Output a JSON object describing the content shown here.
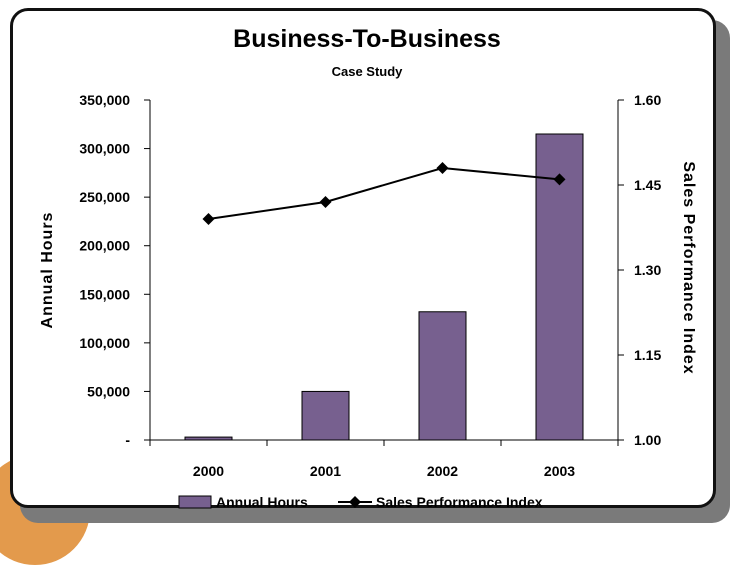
{
  "chart_data": {
    "type": "bar+line",
    "title": "Business-To-Business",
    "subtitle": "Case Study",
    "categories": [
      "2000",
      "2001",
      "2002",
      "2003"
    ],
    "series": [
      {
        "name": "Annual Hours",
        "type": "bar",
        "axis": "left",
        "color": "#77608f",
        "values": [
          3000,
          50000,
          132000,
          315000
        ]
      },
      {
        "name": "Sales Performance Index",
        "type": "line",
        "axis": "right",
        "color": "#000000",
        "values": [
          1.39,
          1.42,
          1.48,
          1.46
        ]
      }
    ],
    "y_left": {
      "label": "Annual Hours",
      "range": [
        0,
        350000
      ],
      "ticks": [
        0,
        50000,
        100000,
        150000,
        200000,
        250000,
        300000,
        350000
      ],
      "tick_labels": [
        "-",
        "50,000",
        "100,000",
        "150,000",
        "200,000",
        "250,000",
        "300,000",
        "350,000"
      ]
    },
    "y_right": {
      "label": "Sales Performance Index",
      "range": [
        1.0,
        1.6
      ],
      "ticks": [
        1.0,
        1.15,
        1.3,
        1.45,
        1.6
      ],
      "tick_labels": [
        "1.00",
        "1.15",
        "1.30",
        "1.45",
        "1.60"
      ]
    },
    "grid": false,
    "legend_position": "bottom"
  },
  "colors": {
    "bar": "#77608f",
    "line": "#000000",
    "accent": "#e39a4c"
  }
}
